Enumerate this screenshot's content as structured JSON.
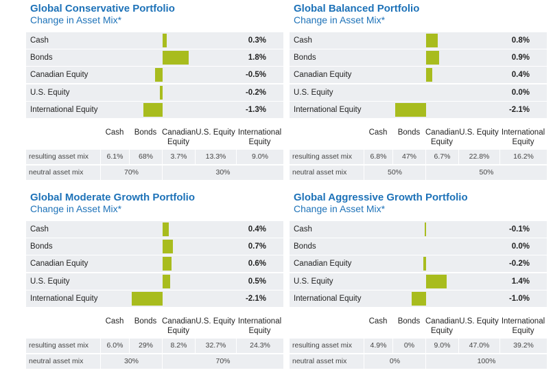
{
  "chart_data": [
    {
      "type": "bar",
      "title": "Global Conservative Portfolio",
      "subtitle": "Change in Asset Mix*",
      "color": "#a8bc1e",
      "categories": [
        "Cash",
        "Bonds",
        "Canadian Equity",
        "U.S. Equity",
        "International Equity"
      ],
      "values": [
        0.3,
        1.8,
        -0.5,
        -0.2,
        -1.3
      ],
      "value_labels": [
        "0.3%",
        "1.8%",
        "-0.5%",
        "-0.2%",
        "-1.3%"
      ],
      "table": {
        "columns": [
          "Cash",
          "Bonds",
          "Canadian Equity",
          "U.S. Equity",
          "International Equity"
        ],
        "rows": [
          {
            "label": "resulting asset mix",
            "cells": [
              "6.1%",
              "68%",
              "3.7%",
              "13.3%",
              "9.0%"
            ]
          },
          {
            "label": "neutral asset mix",
            "cells": [
              "70%",
              "30%"
            ]
          }
        ]
      }
    },
    {
      "type": "bar",
      "title": "Global Balanced Portfolio",
      "subtitle": "Change in Asset Mix*",
      "color": "#a8bc1e",
      "categories": [
        "Cash",
        "Bonds",
        "Canadian Equity",
        "U.S. Equity",
        "International Equity"
      ],
      "values": [
        0.8,
        0.9,
        0.4,
        0.0,
        -2.1
      ],
      "value_labels": [
        "0.8%",
        "0.9%",
        "0.4%",
        "0.0%",
        "-2.1%"
      ],
      "table": {
        "columns": [
          "Cash",
          "Bonds",
          "Canadian Equity",
          "U.S. Equity",
          "International Equity"
        ],
        "rows": [
          {
            "label": "resulting asset mix",
            "cells": [
              "6.8%",
              "47%",
              "6.7%",
              "22.8%",
              "16.2%"
            ]
          },
          {
            "label": "neutral asset mix",
            "cells": [
              "50%",
              "50%"
            ]
          }
        ]
      }
    },
    {
      "type": "bar",
      "title": "Global Moderate Growth Portfolio",
      "subtitle": "Change in Asset Mix*",
      "color": "#a8bc1e",
      "categories": [
        "Cash",
        "Bonds",
        "Canadian Equity",
        "U.S. Equity",
        "International Equity"
      ],
      "values": [
        0.4,
        0.7,
        0.6,
        0.5,
        -2.1
      ],
      "value_labels": [
        "0.4%",
        "0.7%",
        "0.6%",
        "0.5%",
        "-2.1%"
      ],
      "table": {
        "columns": [
          "Cash",
          "Bonds",
          "Canadian Equity",
          "U.S. Equity",
          "International Equity"
        ],
        "rows": [
          {
            "label": "resulting asset mix",
            "cells": [
              "6.0%",
              "29%",
              "8.2%",
              "32.7%",
              "24.3%"
            ]
          },
          {
            "label": "neutral asset mix",
            "cells": [
              "30%",
              "70%"
            ]
          }
        ]
      }
    },
    {
      "type": "bar",
      "title": "Global Aggressive Growth Portfolio",
      "subtitle": "Change in Asset Mix*",
      "color": "#a8bc1e",
      "categories": [
        "Cash",
        "Bonds",
        "Canadian Equity",
        "U.S. Equity",
        "International Equity"
      ],
      "values": [
        -0.1,
        0.0,
        -0.2,
        1.4,
        -1.0
      ],
      "value_labels": [
        "-0.1%",
        "0.0%",
        "-0.2%",
        "1.4%",
        "-1.0%"
      ],
      "table": {
        "columns": [
          "Cash",
          "Bonds",
          "Canadian Equity",
          "U.S. Equity",
          "International Equity"
        ],
        "rows": [
          {
            "label": "resulting asset mix",
            "cells": [
              "4.9%",
              "0%",
              "9.0%",
              "47.0%",
              "39.2%"
            ]
          },
          {
            "label": "neutral asset mix",
            "cells": [
              "0%",
              "100%"
            ]
          }
        ]
      }
    }
  ]
}
